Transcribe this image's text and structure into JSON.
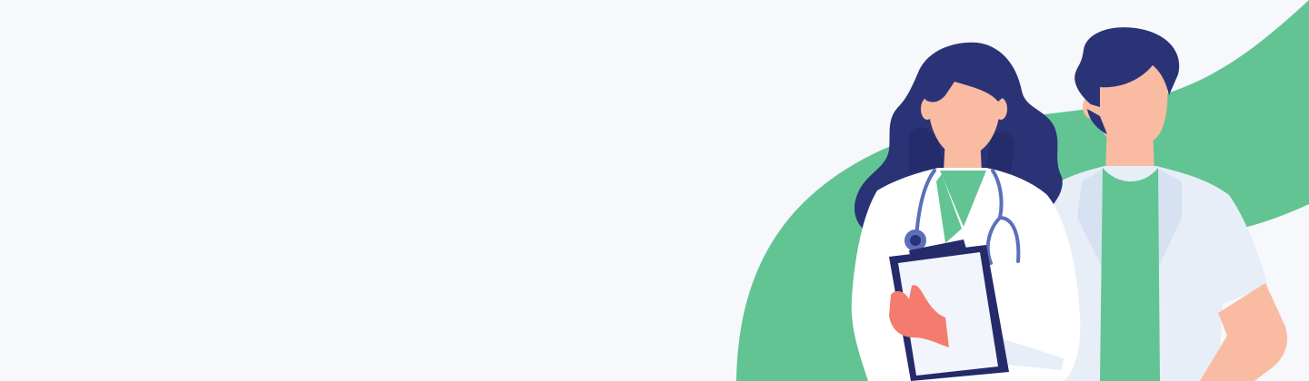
{
  "banner": {
    "illustration": "two-doctors-illustration",
    "icons": {
      "stethoscope": "stethoscope-icon",
      "clipboard": "clipboard-icon"
    },
    "colors": {
      "background": "#f6f8fc",
      "accent_green": "#62c493",
      "hair_navy": "#2b3377",
      "skin": "#f9bca2",
      "coat": "#ffffff",
      "coat_shadow": "#e8eef8",
      "glove": "#f47c6e",
      "clipboard": "#252a6b",
      "stethoscope": "#5b6fba"
    }
  }
}
